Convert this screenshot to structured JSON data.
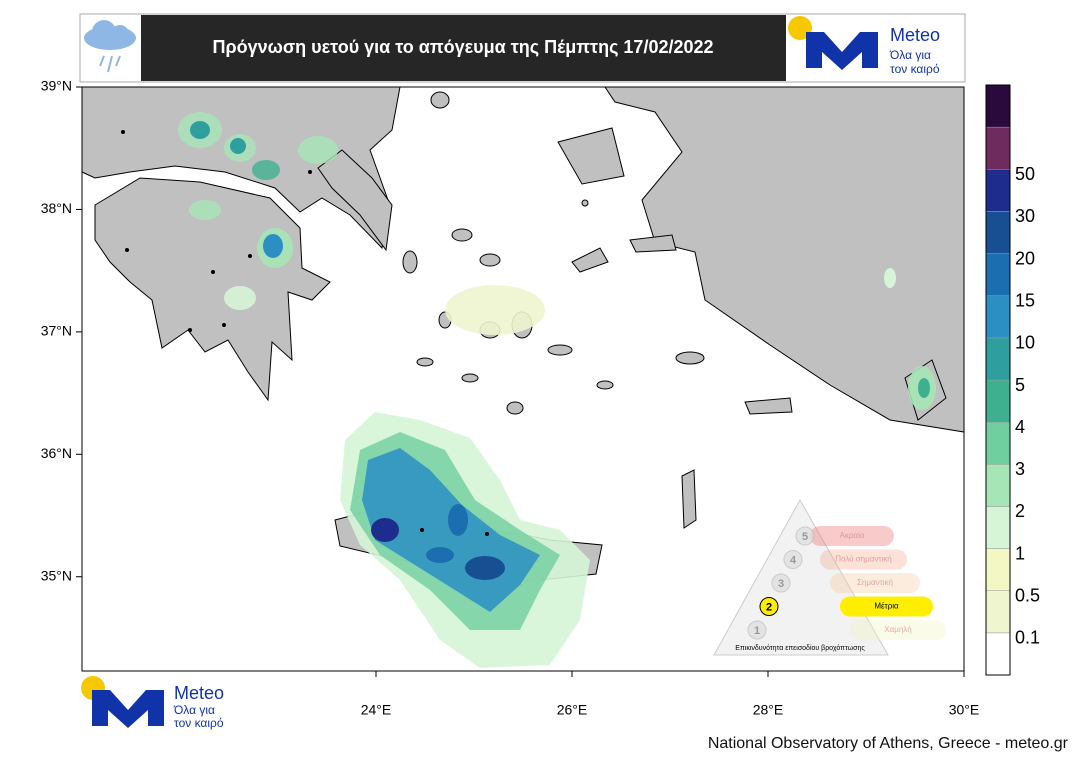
{
  "header": {
    "title": "Πρόγνωση υετού για το απόγευμα της Πέμπτης 17/02/2022"
  },
  "logo": {
    "name": "Meteo",
    "tagline_1": "Όλα για",
    "tagline_2": "τον καιρό"
  },
  "map": {
    "xlim": [
      21,
      30
    ],
    "ylim": [
      34.23,
      39
    ],
    "xticks": [
      {
        "value": 24,
        "label": "24°E"
      },
      {
        "value": 26,
        "label": "26°E"
      },
      {
        "value": 28,
        "label": "28°E"
      },
      {
        "value": 30,
        "label": "30°E"
      }
    ],
    "yticks": [
      {
        "value": 35,
        "label": "35°N"
      },
      {
        "value": 36,
        "label": "36°N"
      },
      {
        "value": 37,
        "label": "37°N"
      },
      {
        "value": 38,
        "label": "38°N"
      },
      {
        "value": 39,
        "label": "39°N"
      }
    ]
  },
  "legend": {
    "levels": [
      0.1,
      0.5,
      1,
      2,
      3,
      4,
      5,
      10,
      15,
      20,
      30,
      50
    ],
    "colors": [
      "#ffffff",
      "#eef5cf",
      "#f3f7c4",
      "#d6f5d6",
      "#a6e6b6",
      "#6fcf9f",
      "#3eb08f",
      "#2f9e9f",
      "#2b8fc4",
      "#1b6fb0",
      "#174f92",
      "#1e2d8d",
      "#6e2c5e",
      "#2a0a3c"
    ]
  },
  "risk_scale": {
    "levels": [
      {
        "number": "1",
        "label": "Χαμηλή"
      },
      {
        "number": "2",
        "label": "Μέτρια"
      },
      {
        "number": "3",
        "label": "Σημαντική"
      },
      {
        "number": "4",
        "label": "Πολύ σημαντική"
      },
      {
        "number": "5",
        "label": "Ακραία"
      }
    ],
    "caption": "Επικινδυνότητα επεισοδίου βροχόπτωσης"
  },
  "footer": "National Observatory of Athens, Greece - meteo.gr"
}
